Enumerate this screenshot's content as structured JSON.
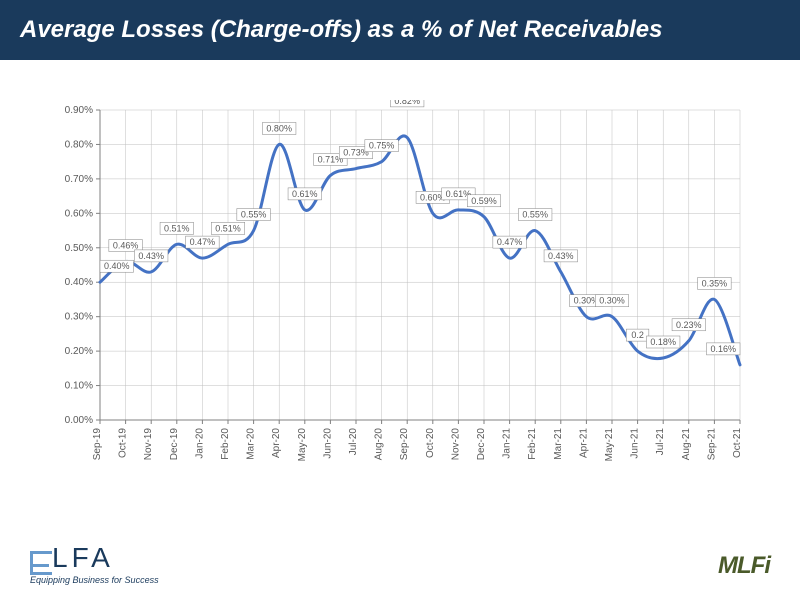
{
  "title": "Average Losses (Charge-offs) as a % of Net Receivables",
  "chart": {
    "type": "line",
    "line_color": "#4472c4",
    "line_width": 3,
    "background_color": "#ffffff",
    "grid_color": "#bfbfbf",
    "axis_color": "#808080",
    "text_color": "#595959",
    "label_box_bg": "#ffffff",
    "label_box_border": "#808080",
    "label_fontsize": 9,
    "axis_fontsize": 10,
    "ylabel_format": "percent",
    "ylim": [
      0,
      0.009
    ],
    "ytick_step": 0.001,
    "yticks": [
      "0.00%",
      "0.10%",
      "0.20%",
      "0.30%",
      "0.40%",
      "0.50%",
      "0.60%",
      "0.70%",
      "0.80%",
      "0.90%"
    ],
    "categories": [
      "Sep-19",
      "Oct-19",
      "Nov-19",
      "Dec-19",
      "Jan-20",
      "Feb-20",
      "Mar-20",
      "Apr-20",
      "May-20",
      "Jun-20",
      "Jul-20",
      "Aug-20",
      "Sep-20",
      "Oct-20",
      "Nov-20",
      "Dec-20",
      "Jan-21",
      "Feb-21",
      "Mar-21",
      "Apr-21",
      "May-21",
      "Jun-21",
      "Jul-21",
      "Aug-21",
      "Sep-21",
      "Oct-21"
    ],
    "values": [
      0.4,
      0.46,
      0.43,
      0.51,
      0.47,
      0.51,
      0.55,
      0.8,
      0.61,
      0.71,
      0.73,
      0.75,
      0.82,
      0.6,
      0.61,
      0.59,
      0.47,
      0.55,
      0.43,
      0.3,
      0.3,
      0.2,
      0.18,
      0.23,
      0.35,
      0.16
    ],
    "value_labels": [
      "0.40%",
      "0.46%",
      "0.43%",
      "0.51%",
      "0.47%",
      "0.51%",
      "0.55%",
      "0.80%",
      "0.61%",
      "0.71%",
      "0.73%",
      "0.75%",
      "0.82%",
      "0.60%",
      "0.61%",
      "0.59%",
      "0.47%",
      "0.55%",
      "0.43%",
      "0.30%",
      "0.30%",
      "0.2",
      "0.18%",
      "0.23%",
      "0.35%",
      "0.16%"
    ],
    "label_y_overrides": {
      "12": 0.88
    }
  },
  "logos": {
    "elfa_tagline": "Equipping Business for Success",
    "mlfi_text": "MLFi"
  }
}
